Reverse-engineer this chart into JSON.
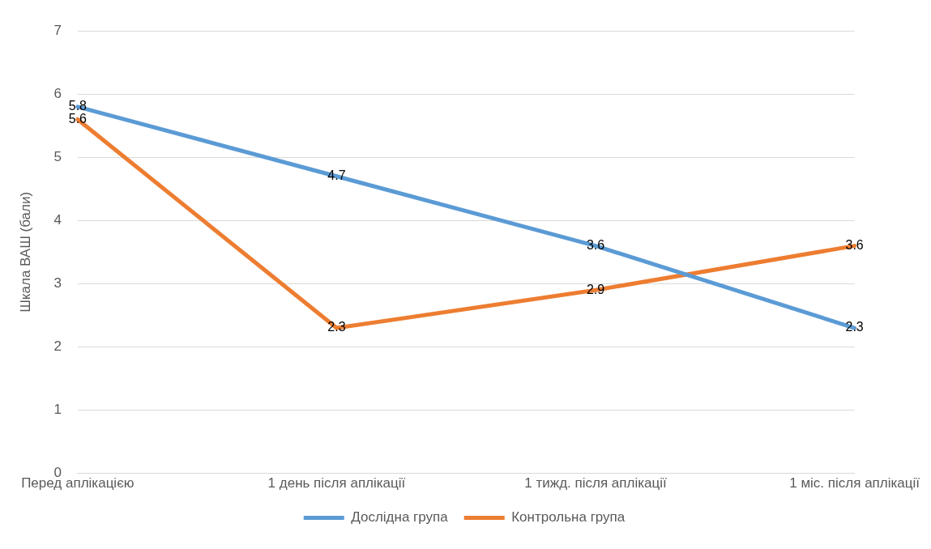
{
  "chart_data": {
    "type": "line",
    "ylabel": "Шкала ВАШ (бали)",
    "categories": [
      "Перед аплікацією",
      "1 день після аплікації",
      "1 тижд. після аплікації",
      "1 міс. після аплікації"
    ],
    "series": [
      {
        "name": "Дослідна група",
        "color": "#5b9bd5",
        "values": [
          5.8,
          4.7,
          3.6,
          2.3
        ]
      },
      {
        "name": "Контрольна група",
        "color": "#ed7d31",
        "values": [
          5.6,
          2.3,
          2.9,
          3.6
        ]
      }
    ],
    "ylim": [
      0,
      7
    ],
    "yticks": [
      0,
      1,
      2,
      3,
      4,
      5,
      6,
      7
    ],
    "grid": "y",
    "legend": "bottom",
    "data_labels": true,
    "marker": "none",
    "line_style": "solid"
  }
}
